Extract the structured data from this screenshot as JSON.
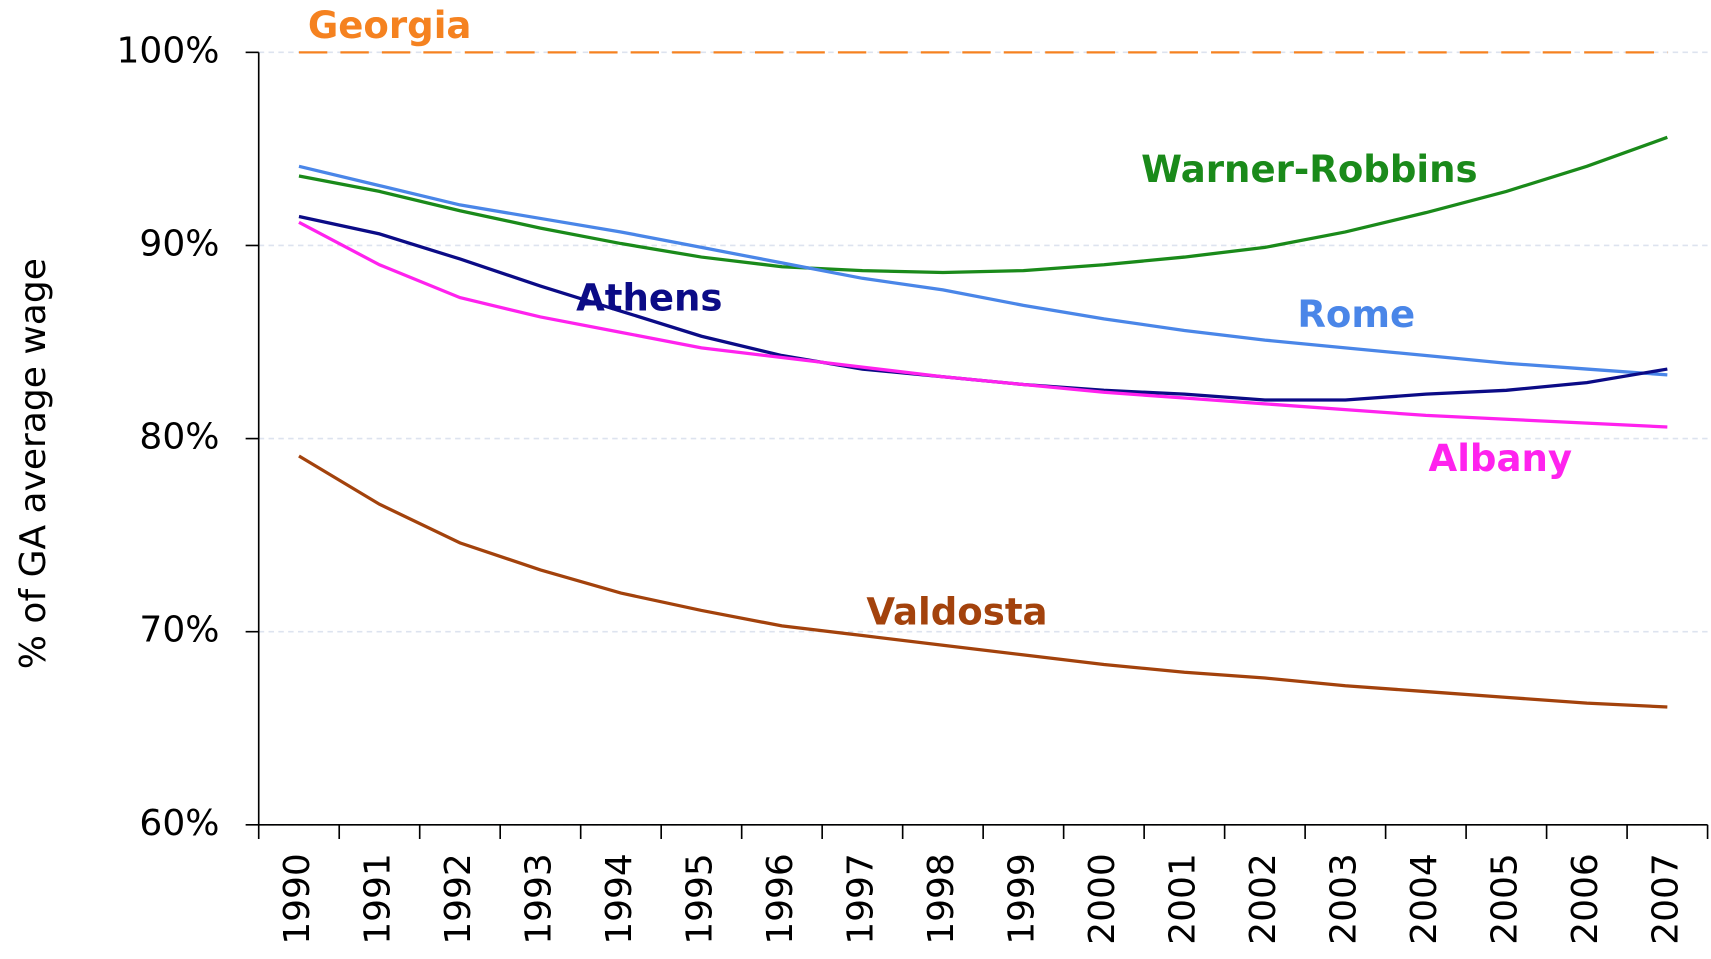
{
  "chart_data": {
    "type": "line",
    "y_label": "% of GA average wage",
    "categories": [
      "1990",
      "1991",
      "1992",
      "1993",
      "1994",
      "1995",
      "1996",
      "1997",
      "1998",
      "1999",
      "2000",
      "2001",
      "2002",
      "2003",
      "2004",
      "2005",
      "2006",
      "2007"
    ],
    "ylim": [
      60,
      100
    ],
    "yticks": [
      {
        "value": 60,
        "label": "60%"
      },
      {
        "value": 70,
        "label": "70%"
      },
      {
        "value": 80,
        "label": "80%"
      },
      {
        "value": 90,
        "label": "90%"
      },
      {
        "value": 100,
        "label": "100%"
      }
    ],
    "grid": true,
    "series": [
      {
        "name": "Georgia",
        "color": "#f58220",
        "dashed": true,
        "values": [
          100,
          100,
          100,
          100,
          100,
          100,
          100,
          100,
          100,
          100,
          100,
          100,
          100,
          100,
          100,
          100,
          100,
          100
        ]
      },
      {
        "name": "Warner-Robbins",
        "color": "#1a8a1a",
        "values": [
          93.6,
          92.8,
          91.8,
          90.9,
          90.1,
          89.4,
          88.9,
          88.7,
          88.6,
          88.7,
          89.0,
          89.4,
          89.9,
          90.7,
          91.7,
          92.8,
          94.1,
          95.6
        ]
      },
      {
        "name": "Rome",
        "color": "#4a86e8",
        "values": [
          94.1,
          93.1,
          92.1,
          91.4,
          90.7,
          89.9,
          89.1,
          88.3,
          87.7,
          86.9,
          86.2,
          85.6,
          85.1,
          84.7,
          84.3,
          83.9,
          83.6,
          83.3
        ]
      },
      {
        "name": "Athens",
        "color": "#0b0b86",
        "values": [
          91.5,
          90.6,
          89.3,
          87.9,
          86.6,
          85.3,
          84.3,
          83.6,
          83.2,
          82.8,
          82.5,
          82.3,
          82.0,
          82.0,
          82.3,
          82.5,
          82.9,
          83.6
        ]
      },
      {
        "name": "Albany",
        "color": "#ff22ee",
        "values": [
          91.2,
          89.0,
          87.3,
          86.3,
          85.5,
          84.7,
          84.2,
          83.7,
          83.2,
          82.8,
          82.4,
          82.1,
          81.8,
          81.5,
          81.2,
          81.0,
          80.8,
          80.6
        ]
      },
      {
        "name": "Valdosta",
        "color": "#a3420c",
        "values": [
          79.1,
          76.6,
          74.6,
          73.2,
          72.0,
          71.1,
          70.3,
          69.8,
          69.3,
          68.8,
          68.3,
          67.9,
          67.6,
          67.2,
          66.9,
          66.6,
          66.3,
          66.1
        ]
      }
    ]
  }
}
